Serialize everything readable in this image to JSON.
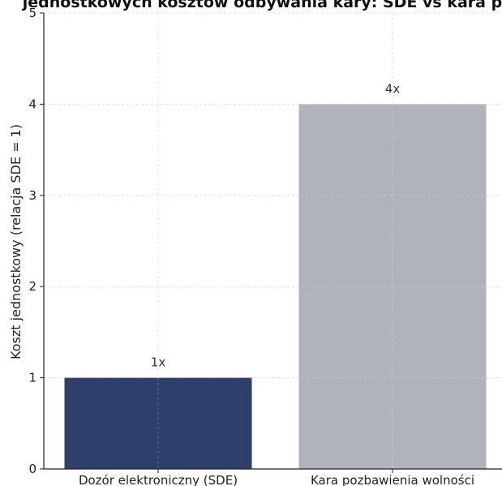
{
  "chart_data": {
    "type": "bar",
    "title": "jednostkowych kosztów odbywania kary: SDE vs kara po",
    "xlabel": "",
    "ylabel": "Koszt jednostkowy (relacja SDE = 1)",
    "categories": [
      "Dozór elektroniczny (SDE)",
      "Kara pozbawienia wolności"
    ],
    "values": [
      1,
      4
    ],
    "data_labels": [
      "1x",
      "4x"
    ],
    "colors": [
      "#2f3f6b",
      "#b0b3ba"
    ],
    "ylim": [
      0,
      5
    ],
    "yticks": [
      0,
      1,
      2,
      3,
      4,
      5
    ],
    "ytick_labels": [
      "0",
      "1",
      "2",
      "3",
      "4",
      "5"
    ],
    "grid": true,
    "legend": "none"
  }
}
